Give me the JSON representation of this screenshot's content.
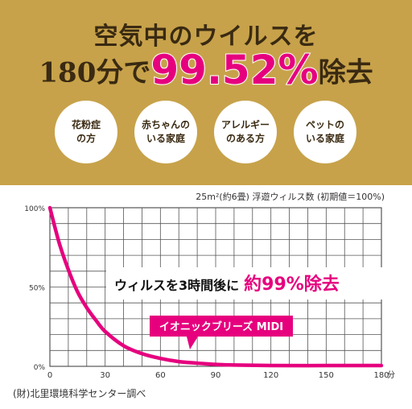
{
  "header": {
    "line1": "空気中のウイルスを",
    "line2_pre": "180分で",
    "line2_pct": "99.52%",
    "line2_post": "除去"
  },
  "circles": [
    {
      "line1": "花粉症",
      "line2": "の方"
    },
    {
      "line1": "赤ちゃんの",
      "line2": "いる家庭"
    },
    {
      "line1": "アレルギー",
      "line2": "のある方"
    },
    {
      "line1": "ペットの",
      "line2": "いる家庭"
    }
  ],
  "chart_data": {
    "type": "line",
    "title": "25m²(約6畳)  浮遊ウィルス数 (初期値＝100%)",
    "x_unit": "分",
    "xlim": [
      0,
      180
    ],
    "ylim": [
      0,
      100
    ],
    "x_ticks": [
      "0",
      "30",
      "60",
      "90",
      "120",
      "150",
      "180"
    ],
    "y_ticks": [
      "0%",
      "50%",
      "100%"
    ],
    "grid": true,
    "series": [
      {
        "name": "イオニックブリーズ MIDI",
        "color": "#e6007e",
        "x": [
          0,
          5,
          10,
          15,
          20,
          25,
          30,
          40,
          50,
          60,
          70,
          80,
          90,
          100,
          120,
          150,
          180
        ],
        "y": [
          100,
          78,
          61,
          47,
          37,
          29,
          22,
          13,
          8,
          5,
          3,
          2,
          1.2,
          0.8,
          0.5,
          0.48,
          0.48
        ]
      }
    ],
    "annotation": {
      "prefix": "ウィルスを3時間後に",
      "highlight": "約99%除去"
    }
  },
  "source": "(財)北里環境科学センター調べ"
}
